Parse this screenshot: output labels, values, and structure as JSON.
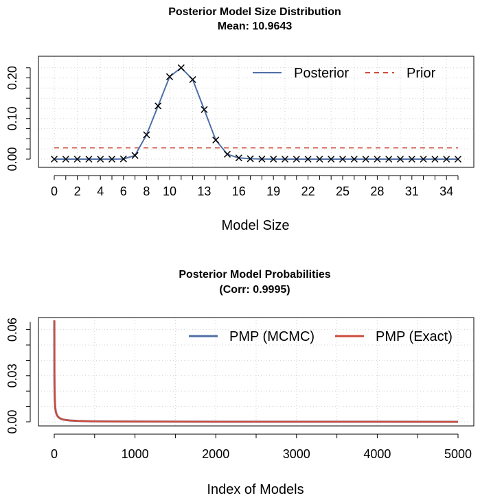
{
  "chart_data": [
    {
      "type": "line",
      "title": "Posterior Model Size Distribution",
      "subtitle": "Mean: 10.9643",
      "xlabel": "Model Size",
      "ylabel": "",
      "x": [
        0,
        1,
        2,
        3,
        4,
        5,
        6,
        7,
        8,
        9,
        10,
        11,
        12,
        13,
        14,
        15,
        16,
        17,
        18,
        19,
        20,
        21,
        22,
        23,
        24,
        25,
        26,
        27,
        28,
        29,
        30,
        31,
        32,
        33,
        34,
        35
      ],
      "xticks": [
        "0",
        "2",
        "4",
        "6",
        "8",
        "10",
        "13",
        "16",
        "19",
        "22",
        "25",
        "28",
        "31",
        "34"
      ],
      "yticks": [
        "0.00",
        "0.10",
        "0.20"
      ],
      "ylim": [
        0,
        0.22
      ],
      "grid": true,
      "legend_position": "top-right",
      "series": [
        {
          "name": "Posterior",
          "color": "#4e6fa6",
          "marker": "x",
          "values": [
            0,
            0,
            0,
            0,
            0,
            0,
            0.0005,
            0.009,
            0.06,
            0.131,
            0.203,
            0.225,
            0.196,
            0.122,
            0.047,
            0.012,
            0.003,
            0.001,
            0.0003,
            0.0001,
            0,
            0,
            0,
            0,
            0,
            0,
            0,
            0,
            0,
            0,
            0,
            0,
            0,
            0,
            0,
            0
          ]
        },
        {
          "name": "Prior",
          "color": "#cc4c3b",
          "style": "dashed",
          "values": [
            0.0278,
            0.0278,
            0.0278,
            0.0278,
            0.0278,
            0.0278,
            0.0278,
            0.0278,
            0.0278,
            0.0278,
            0.0278,
            0.0278,
            0.0278,
            0.0278,
            0.0278,
            0.0278,
            0.0278,
            0.0278,
            0.0278,
            0.0278,
            0.0278,
            0.0278,
            0.0278,
            0.0278,
            0.0278,
            0.0278,
            0.0278,
            0.0278,
            0.0278,
            0.0278,
            0.0278,
            0.0278,
            0.0278,
            0.0278,
            0.0278,
            0.0278
          ]
        }
      ]
    },
    {
      "type": "line",
      "title": "Posterior Model Probabilities",
      "subtitle": "(Corr: 0.9995)",
      "xlabel": "Index of Models",
      "ylabel": "",
      "xticks": [
        "0",
        "1000",
        "2000",
        "3000",
        "4000",
        "5000"
      ],
      "yticks": [
        "0.00",
        "0.03",
        "0.06"
      ],
      "xlim": [
        0,
        5000
      ],
      "ylim": [
        0,
        0.066
      ],
      "grid": true,
      "legend_position": "top-right",
      "series": [
        {
          "name": "PMP (MCMC)",
          "color": "#4e6fa6",
          "x": [
            1,
            2,
            3,
            5,
            8,
            12,
            18,
            25,
            35,
            50,
            70,
            100,
            140,
            200,
            300,
            450,
            700,
            1000,
            1500,
            2000,
            3000,
            4000,
            5000
          ],
          "values": [
            0.066,
            0.032,
            0.024,
            0.018,
            0.013,
            0.0095,
            0.007,
            0.0055,
            0.0042,
            0.0031,
            0.0023,
            0.0016,
            0.0012,
            0.00085,
            0.00055,
            0.00035,
            0.00022,
            0.00015,
            0.0001,
            7e-05,
            4e-05,
            3e-05,
            2e-05
          ]
        },
        {
          "name": "PMP (Exact)",
          "color": "#cc4c3b",
          "x": [
            1,
            2,
            3,
            5,
            8,
            12,
            18,
            25,
            35,
            50,
            70,
            100,
            140,
            200,
            300,
            450,
            700,
            1000,
            1500,
            2000,
            3000,
            4000,
            5000
          ],
          "values": [
            0.066,
            0.032,
            0.024,
            0.018,
            0.013,
            0.0095,
            0.007,
            0.0055,
            0.0042,
            0.0031,
            0.0023,
            0.0016,
            0.0012,
            0.00085,
            0.00055,
            0.00035,
            0.00022,
            0.00015,
            0.0001,
            7e-05,
            4e-05,
            3e-05,
            2e-05
          ]
        }
      ]
    }
  ]
}
